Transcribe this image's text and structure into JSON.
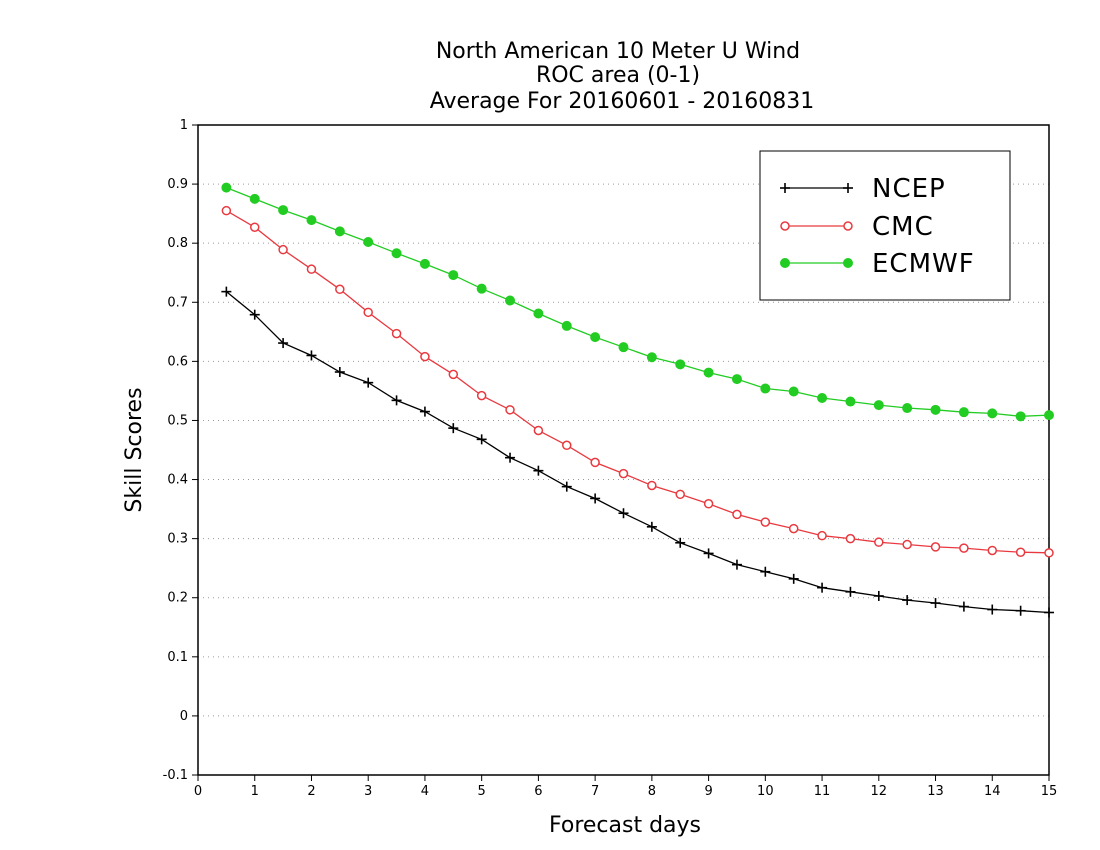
{
  "chart_data": {
    "type": "line",
    "title_lines": [
      "North American 10 Meter U Wind",
      "ROC area (0-1)",
      "Average For 20160601 - 20160831"
    ],
    "xlabel": "Forecast days",
    "ylabel": "Skill Scores",
    "xlim": [
      0,
      15
    ],
    "ylim": [
      -0.1,
      1
    ],
    "xticks": [
      0,
      1,
      2,
      3,
      4,
      5,
      6,
      7,
      8,
      9,
      10,
      11,
      12,
      13,
      14,
      15
    ],
    "yticks": [
      -0.1,
      0,
      0.1,
      0.2,
      0.3,
      0.4,
      0.5,
      0.6,
      0.7,
      0.8,
      0.9,
      1
    ],
    "xtick_labels": [
      "0",
      "1",
      "2",
      "3",
      "4",
      "5",
      "6",
      "7",
      "8",
      "9",
      "10",
      "11",
      "12",
      "13",
      "14",
      "15"
    ],
    "ytick_labels": [
      "-0.1",
      "0",
      "0.1",
      "0.2",
      "0.3",
      "0.4",
      "0.5",
      "0.6",
      "0.7",
      "0.8",
      "0.9",
      "1"
    ],
    "grid": "horizontal dotted",
    "legend_position": "top-right",
    "x": [
      0.5,
      1,
      1.5,
      2,
      2.5,
      3,
      3.5,
      4,
      4.5,
      5,
      5.5,
      6,
      6.5,
      7,
      7.5,
      8,
      8.5,
      9,
      9.5,
      10,
      10.5,
      11,
      11.5,
      12,
      12.5,
      13,
      13.5,
      14,
      14.5,
      15
    ],
    "series": [
      {
        "name": "NCEP",
        "color": "#000000",
        "marker": "plus",
        "values": [
          0.718,
          0.679,
          0.631,
          0.61,
          0.582,
          0.564,
          0.534,
          0.515,
          0.487,
          0.468,
          0.437,
          0.415,
          0.388,
          0.368,
          0.343,
          0.32,
          0.293,
          0.275,
          0.256,
          0.244,
          0.232,
          0.217,
          0.21,
          0.203,
          0.196,
          0.191,
          0.185,
          0.18,
          0.178,
          0.175
        ]
      },
      {
        "name": "CMC",
        "color": "#e8393f",
        "marker": "open-circle",
        "values": [
          0.855,
          0.827,
          0.789,
          0.756,
          0.722,
          0.683,
          0.647,
          0.608,
          0.578,
          0.542,
          0.518,
          0.483,
          0.458,
          0.429,
          0.41,
          0.39,
          0.375,
          0.359,
          0.341,
          0.328,
          0.317,
          0.305,
          0.3,
          0.294,
          0.29,
          0.286,
          0.284,
          0.28,
          0.277,
          0.276
        ]
      },
      {
        "name": "ECMWF",
        "color": "#22cc22",
        "marker": "filled-circle",
        "values": [
          0.894,
          0.875,
          0.856,
          0.839,
          0.82,
          0.802,
          0.783,
          0.765,
          0.746,
          0.723,
          0.703,
          0.681,
          0.66,
          0.641,
          0.624,
          0.607,
          0.595,
          0.581,
          0.57,
          0.554,
          0.549,
          0.538,
          0.532,
          0.526,
          0.521,
          0.518,
          0.514,
          0.512,
          0.507,
          0.509
        ]
      }
    ]
  }
}
